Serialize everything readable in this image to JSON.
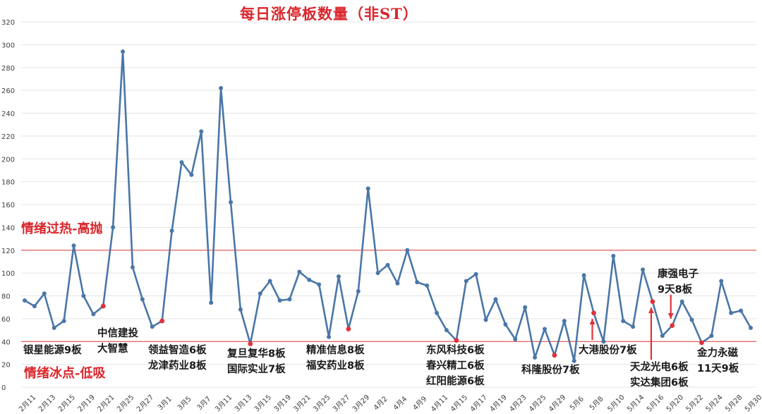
{
  "title": "每日涨停板数量（非ST）",
  "zones": {
    "hot": "情绪过热-高抛",
    "cold": "情绪冰点-低吸"
  },
  "annotations": [
    {
      "id": "a1",
      "lines": [
        "银星能源9板"
      ]
    },
    {
      "id": "a2",
      "lines": [
        "中信建投",
        "大智慧"
      ]
    },
    {
      "id": "a3",
      "lines": [
        "领益智造6板",
        "龙津药业8板"
      ]
    },
    {
      "id": "a4",
      "lines": [
        "复旦复华8板",
        "国际实业7板"
      ]
    },
    {
      "id": "a5",
      "lines": [
        "精准信息8板",
        "福安药业8板"
      ]
    },
    {
      "id": "a6",
      "lines": [
        "东风科技6板",
        "春兴精工6板",
        "红阳能源6板"
      ]
    },
    {
      "id": "a7",
      "lines": [
        "科隆股份7板"
      ]
    },
    {
      "id": "a8",
      "lines": [
        "大港股份7板"
      ]
    },
    {
      "id": "a9",
      "lines": [
        "康强电子",
        "9天8板"
      ]
    },
    {
      "id": "a10",
      "lines": [
        "天龙光电6板",
        "实达集团6板"
      ]
    },
    {
      "id": "a11",
      "lines": [
        "金力永磁",
        "11天9板"
      ]
    }
  ],
  "colors": {
    "line": "#4a76a8",
    "marker_highlight": "#e0323a",
    "threshold": "#e06060",
    "grid": "#e3e3e3",
    "title": "#d9262c"
  },
  "chart_data": {
    "type": "line",
    "title": "每日涨停板数量（非ST）",
    "xlabel": "",
    "ylabel": "",
    "ylim": [
      0,
      320
    ],
    "yticks": [
      0,
      20,
      40,
      60,
      80,
      100,
      120,
      140,
      160,
      180,
      200,
      220,
      240,
      260,
      280,
      300,
      320
    ],
    "grid": true,
    "legend": "none",
    "x_tick_labels": [
      "2月11",
      "2月13",
      "2月15",
      "2月19",
      "2月21",
      "2月25",
      "2月27",
      "3月1",
      "3月5",
      "3月7",
      "3月11",
      "3月13",
      "3月15",
      "3月19",
      "3月21",
      "3月25",
      "3月27",
      "3月29",
      "4月2",
      "4月4",
      "4月9",
      "4月11",
      "4月15",
      "4月17",
      "4月19",
      "4月23",
      "4月25",
      "4月29",
      "5月6",
      "5月8",
      "5月10",
      "5月14",
      "5月16",
      "5月20",
      "5月22",
      "5月24",
      "5月28",
      "5月30"
    ],
    "x_tick_every": 2,
    "series": [
      {
        "name": "每日涨停板数量",
        "values": [
          76,
          71,
          82,
          52,
          58,
          124,
          80,
          64,
          71,
          140,
          294,
          105,
          77,
          53,
          58,
          137,
          197,
          186,
          224,
          74,
          262,
          162,
          68,
          38,
          82,
          93,
          76,
          77,
          101,
          94,
          90,
          44,
          97,
          51,
          84,
          174,
          100,
          107,
          91,
          120,
          92,
          89,
          65,
          50,
          41,
          93,
          99,
          59,
          77,
          55,
          42,
          70,
          26,
          51,
          28,
          58,
          23,
          98,
          65,
          40,
          115,
          58,
          53,
          103,
          75,
          45,
          54,
          75,
          59,
          39,
          45,
          93,
          65,
          67,
          52
        ]
      }
    ],
    "highlighted_points": [
      8,
      14,
      23,
      33,
      44,
      54,
      58,
      64,
      66,
      69
    ],
    "threshold_lines": [
      {
        "value": 120,
        "label": "情绪过热-高抛"
      },
      {
        "value": 40,
        "label": "情绪冰点-低吸"
      }
    ],
    "arrows": [
      {
        "to_index": 58,
        "label": "大港股份7板"
      },
      {
        "to_index": 64,
        "label": "天龙光电6板 实达集团6板"
      },
      {
        "to_index": 66,
        "label": "康强电子 9天8板"
      }
    ]
  }
}
